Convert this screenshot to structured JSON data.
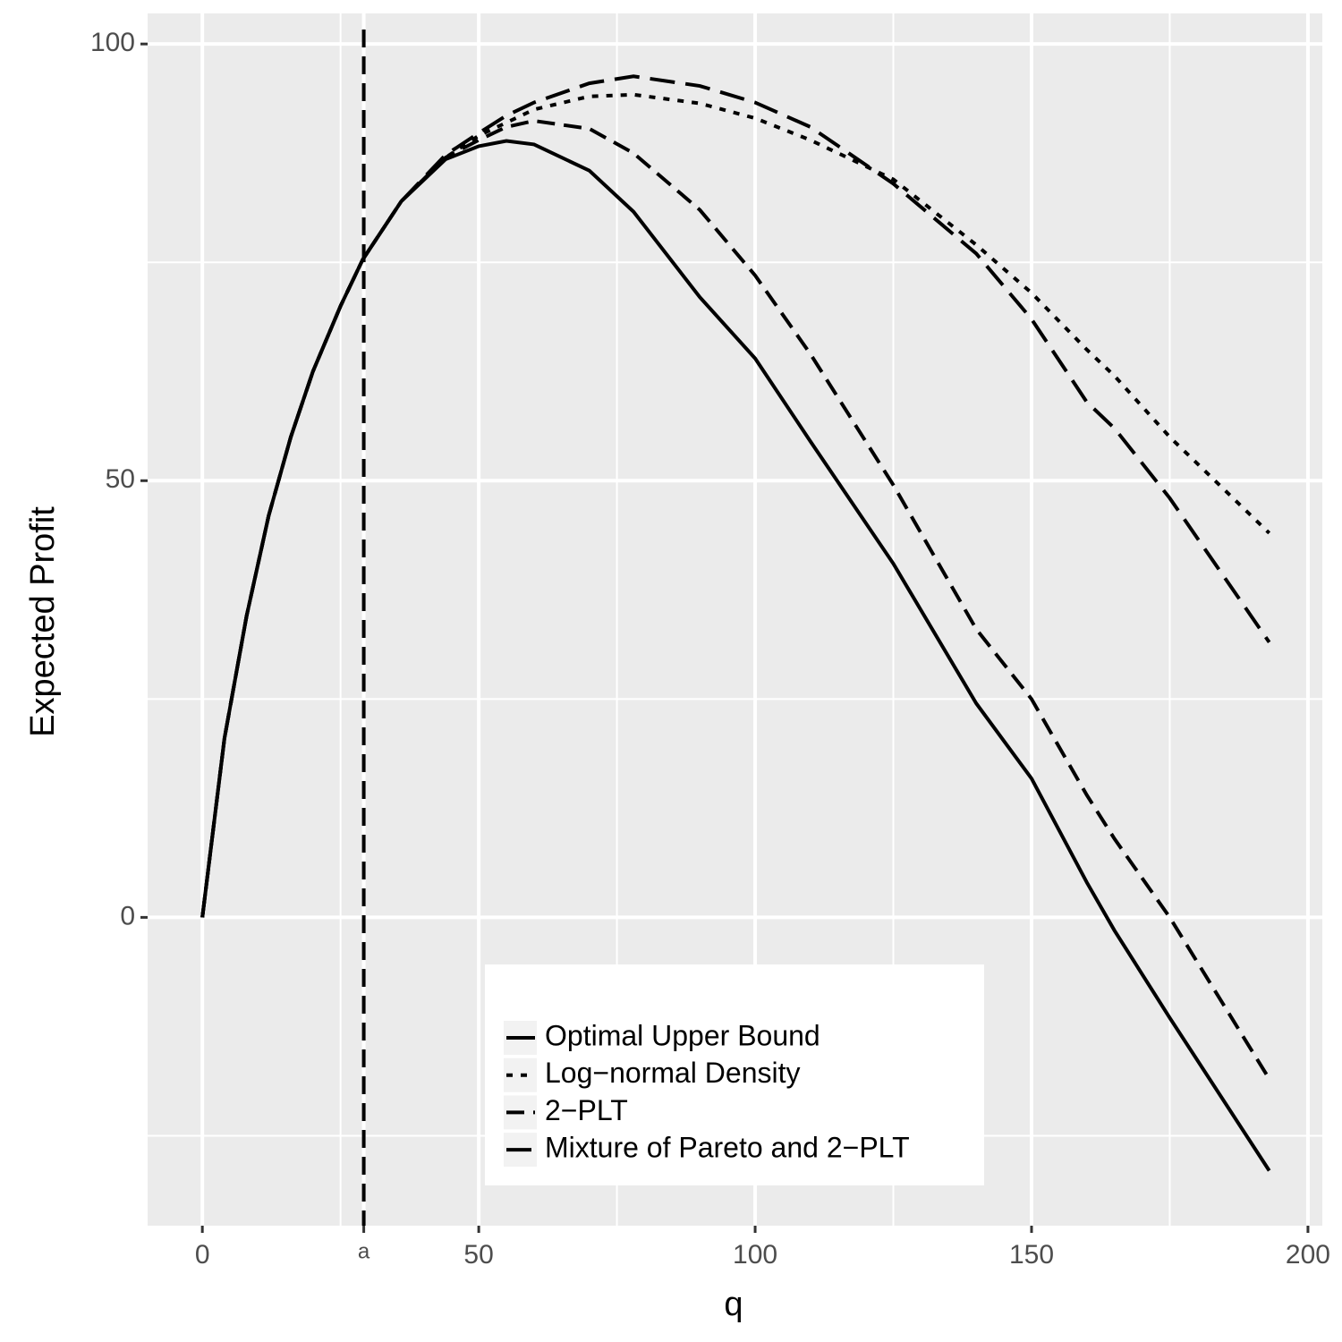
{
  "chart_data": {
    "type": "line",
    "xlabel": "q",
    "ylabel": "Expected Profit",
    "x": [
      0,
      4,
      8,
      12,
      16,
      20,
      25,
      29,
      36,
      44,
      50,
      55,
      60,
      70,
      78,
      90,
      100,
      110,
      125,
      140,
      150,
      160,
      165,
      175,
      193
    ],
    "series": [
      {
        "name": "Optimal Upper Bound",
        "color": "#000000",
        "linestyle": "solid",
        "values": [
          0,
          20.5,
          34.5,
          46,
          55,
          62.5,
          70,
          75.3,
          82,
          86.8,
          88.3,
          88.9,
          88.5,
          85.5,
          80.8,
          71,
          64,
          54.5,
          40.5,
          24.5,
          15.9,
          4,
          -1.5,
          -11.5,
          -29
        ]
      },
      {
        "name": "Log−normal Density",
        "color": "#000000",
        "linestyle": "dotted",
        "values": [
          0,
          20.5,
          34.5,
          46,
          55,
          62.5,
          70,
          75.3,
          82,
          87,
          89.5,
          91,
          92.5,
          94,
          94.2,
          93.2,
          91.5,
          89,
          84.5,
          77,
          71.5,
          65,
          62,
          55,
          44
        ]
      },
      {
        "name": "2−PLT",
        "color": "#000000",
        "linestyle": "dashed",
        "values": [
          0,
          20.5,
          34.5,
          46,
          55,
          62.5,
          70,
          75.3,
          82,
          87,
          89,
          90.5,
          91.2,
          90.3,
          87.5,
          81,
          73.5,
          64.5,
          49.5,
          33,
          25,
          14,
          9,
          0,
          -18.5
        ]
      },
      {
        "name": "Mixture of Pareto and 2−PLT",
        "color": "#000000",
        "linestyle": "longdash",
        "values": [
          0,
          20.5,
          34.5,
          46,
          55,
          62.5,
          70,
          75.3,
          82,
          87.3,
          89.8,
          91.8,
          93.3,
          95.5,
          96.3,
          95.2,
          93.3,
          90.5,
          84,
          76,
          68.5,
          59,
          56,
          48,
          31.5
        ]
      }
    ],
    "vline": 29.2,
    "xlim": [
      -9.9,
      202.6
    ],
    "ylim": [
      -35.3,
      103.5
    ],
    "xticks": [
      0,
      {
        "value": 29.2,
        "label": "a"
      },
      50,
      100,
      150,
      200
    ],
    "yticks": [
      0,
      50,
      100
    ],
    "minor_xticks": [
      25,
      75,
      125,
      175
    ],
    "minor_yticks": [
      -25,
      25,
      75
    ],
    "grid": true
  }
}
